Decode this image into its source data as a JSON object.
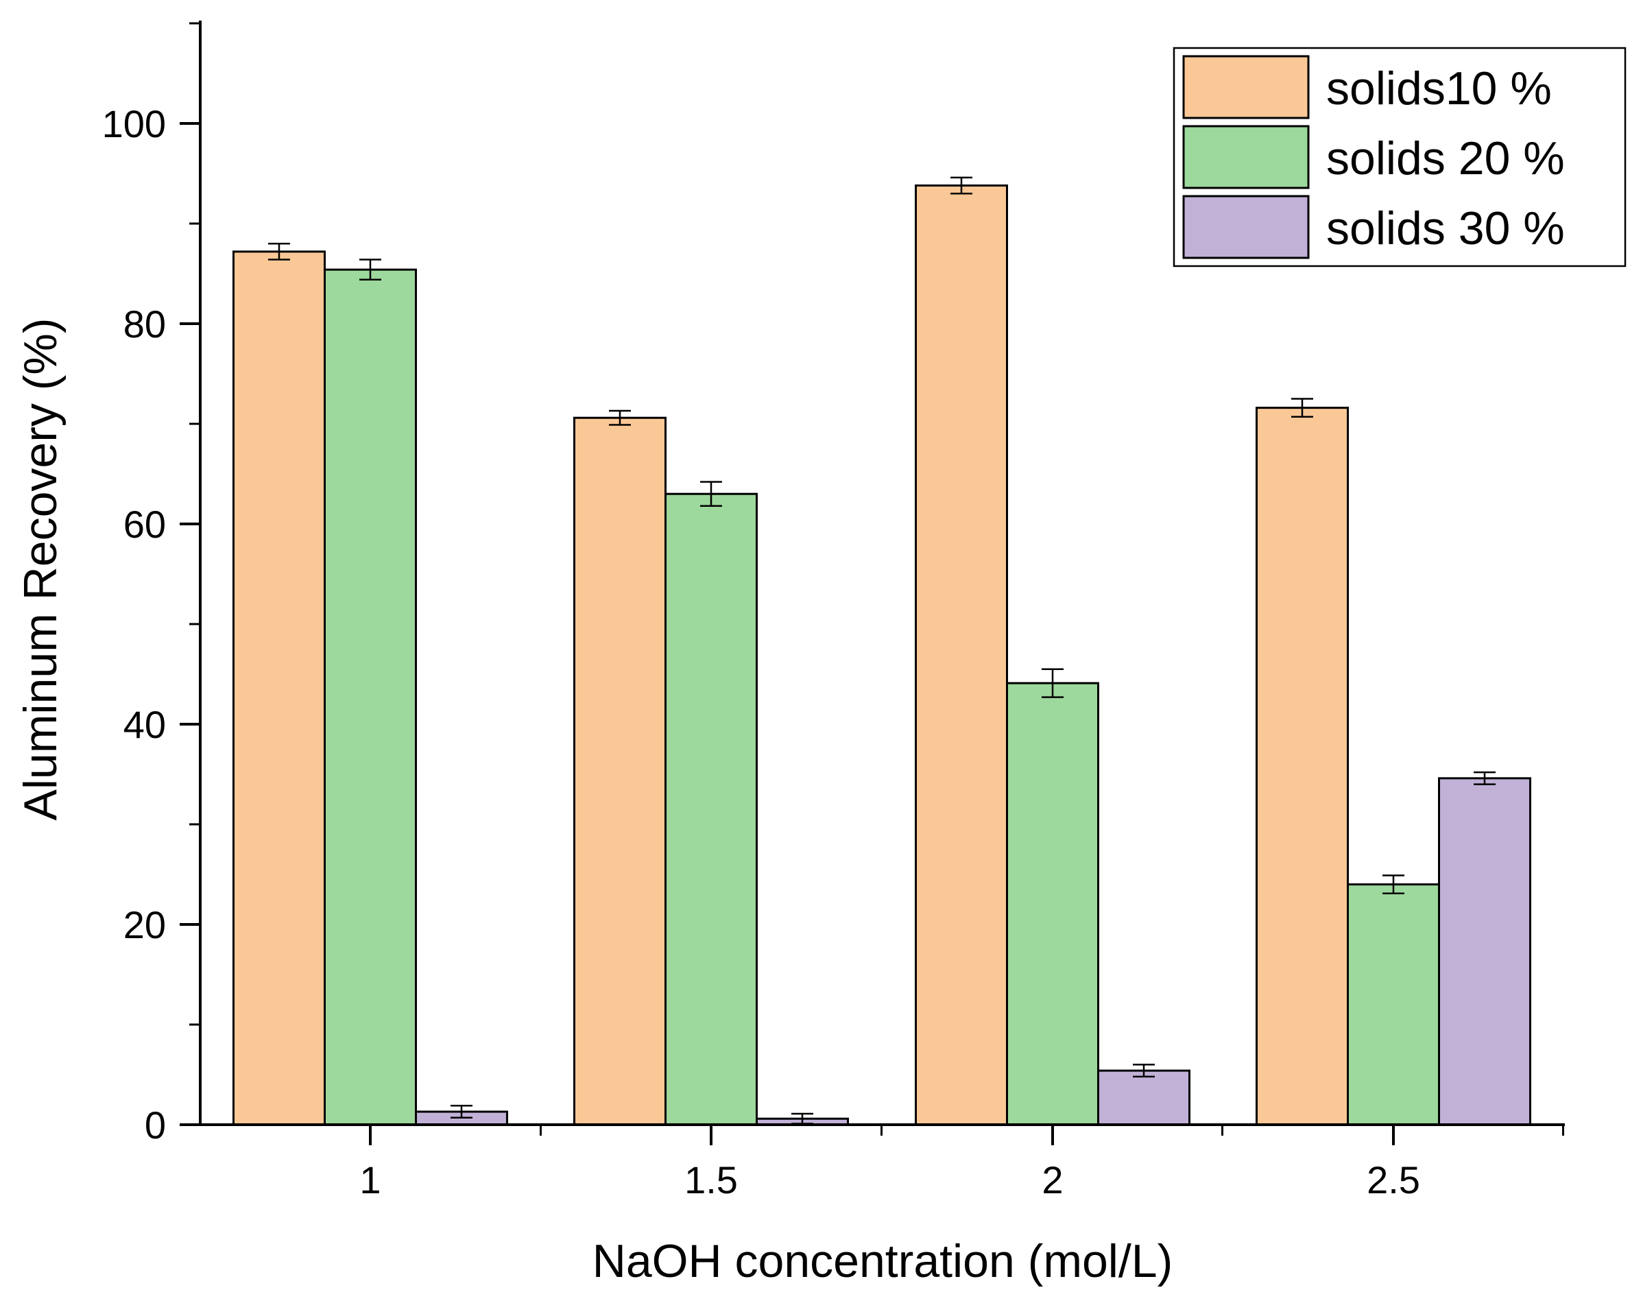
{
  "chart_data": {
    "type": "bar",
    "title": "",
    "xlabel": "NaOH concentration (mol/L)",
    "ylabel": "Aluminum Recovery (%)",
    "ylim": [
      0,
      110
    ],
    "yticks": [
      0,
      20,
      40,
      60,
      80,
      100
    ],
    "categories": [
      "1",
      "1.5",
      "2",
      "2.5"
    ],
    "series": [
      {
        "name": "solids10 %",
        "color": "#FAC896",
        "values": [
          87.2,
          70.6,
          93.8,
          71.6
        ],
        "errors": [
          0.8,
          0.7,
          0.8,
          0.9
        ]
      },
      {
        "name": "solids 20 %",
        "color": "#9DD89C",
        "values": [
          85.4,
          63.0,
          44.1,
          24.0
        ],
        "errors": [
          1.0,
          1.2,
          1.4,
          0.9
        ]
      },
      {
        "name": "solids 30 %",
        "color": "#C1B1D7",
        "values": [
          1.3,
          0.6,
          5.4,
          34.6
        ],
        "errors": [
          0.6,
          0.5,
          0.6,
          0.6
        ]
      }
    ],
    "legend_position": "top-right",
    "grid": false
  }
}
